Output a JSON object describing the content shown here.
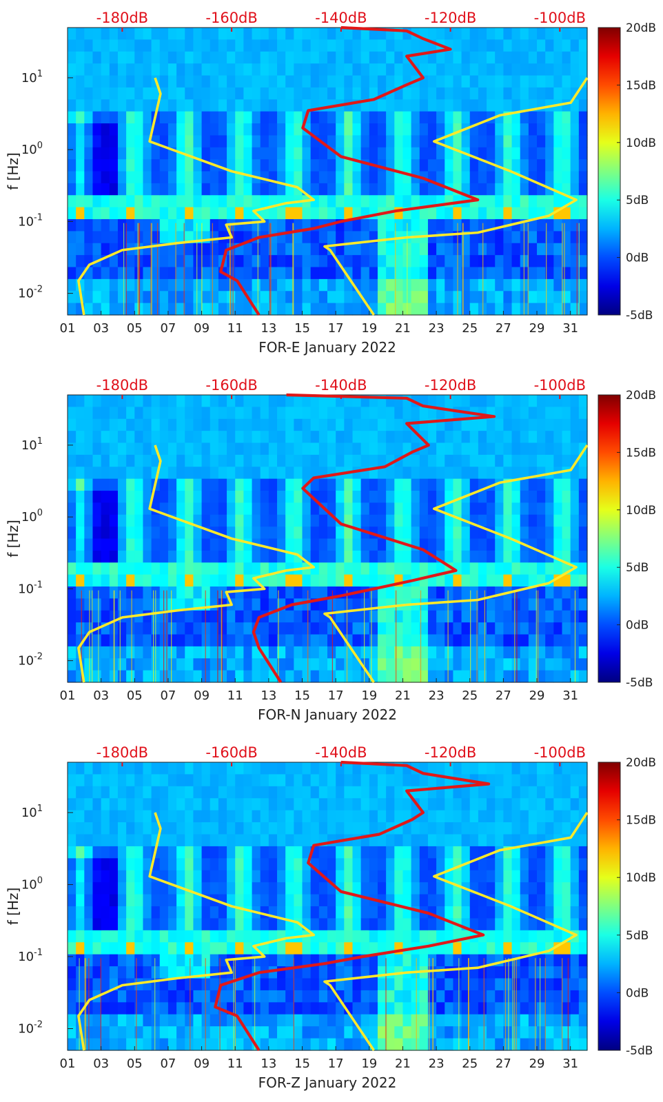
{
  "figure": {
    "colors": {
      "ppsd_low": "#00007f",
      "noise_model": "#ffea2a",
      "spectrum_line": "#e01818",
      "top_axis_text": "#e0101a",
      "axis_text": "#222222"
    }
  },
  "chart_data": [
    {
      "type": "heatmap",
      "title": "",
      "xlabel": "FOR-E January 2022",
      "ylabel": "f [Hz]",
      "x_ticks": [
        "01",
        "03",
        "05",
        "07",
        "09",
        "11",
        "13",
        "15",
        "17",
        "19",
        "21",
        "23",
        "25",
        "27",
        "29",
        "31"
      ],
      "x_range_days": [
        1,
        32
      ],
      "y_ticks": [
        "10^-2",
        "10^-1",
        "10^0",
        "10^1"
      ],
      "y_range_hz": [
        0.005,
        50
      ],
      "top_axis_ticks": [
        "-180dB",
        "-160dB",
        "-140dB",
        "-120dB",
        "-100dB"
      ],
      "top_axis_range_db": [
        -190,
        -95
      ],
      "colorbar_ticks": [
        "20dB",
        "15dB",
        "10dB",
        "5dB",
        "0dB",
        "-5dB"
      ],
      "colorbar_range_db": [
        -5,
        20
      ],
      "series": [
        {
          "name": "noise model (left)",
          "axis": "top",
          "points": [
            [
              -187,
              0.005
            ],
            [
              -188,
              0.015
            ],
            [
              -186,
              0.025
            ],
            [
              -180,
              0.04
            ],
            [
              -170,
              0.05
            ],
            [
              -160,
              0.06
            ],
            [
              -161,
              0.09
            ],
            [
              -154,
              0.1
            ],
            [
              -156,
              0.14
            ],
            [
              -150,
              0.18
            ],
            [
              -145,
              0.2
            ],
            [
              -148,
              0.3
            ],
            [
              -160,
              0.5
            ],
            [
              -175,
              1.3
            ],
            [
              -173,
              6
            ],
            [
              -174,
              10
            ]
          ]
        },
        {
          "name": "noise model (right)",
          "axis": "top",
          "points": [
            [
              -134,
              0.005
            ],
            [
              -142,
              0.04
            ],
            [
              -143,
              0.045
            ],
            [
              -128,
              0.06
            ],
            [
              -115,
              0.07
            ],
            [
              -102,
              0.12
            ],
            [
              -97,
              0.2
            ],
            [
              -109,
              0.5
            ],
            [
              -123,
              1.3
            ],
            [
              -111,
              3
            ],
            [
              -98,
              4.5
            ],
            [
              -95,
              10
            ]
          ]
        },
        {
          "name": "station spectrum",
          "axis": "top",
          "points": [
            [
              -155,
              0.005
            ],
            [
              -159,
              0.015
            ],
            [
              -162,
              0.02
            ],
            [
              -161,
              0.04
            ],
            [
              -155,
              0.06
            ],
            [
              -145,
              0.08
            ],
            [
              -140,
              0.1
            ],
            [
              -130,
              0.14
            ],
            [
              -115,
              0.2
            ],
            [
              -125,
              0.4
            ],
            [
              -140,
              0.8
            ],
            [
              -147,
              2
            ],
            [
              -146,
              3.5
            ],
            [
              -134,
              5
            ],
            [
              -128,
              8
            ],
            [
              -125,
              10
            ],
            [
              -128,
              20
            ],
            [
              -120,
              25
            ],
            [
              -125,
              35
            ],
            [
              -128,
              45
            ],
            [
              -140,
              50
            ]
          ]
        }
      ]
    },
    {
      "type": "heatmap",
      "title": "",
      "xlabel": "FOR-N January 2022",
      "ylabel": "f [Hz]",
      "x_ticks": [
        "01",
        "03",
        "05",
        "07",
        "09",
        "11",
        "13",
        "15",
        "17",
        "19",
        "21",
        "23",
        "25",
        "27",
        "29",
        "31"
      ],
      "x_range_days": [
        1,
        32
      ],
      "y_ticks": [
        "10^-2",
        "10^-1",
        "10^0",
        "10^1"
      ],
      "y_range_hz": [
        0.005,
        50
      ],
      "top_axis_ticks": [
        "-180dB",
        "-160dB",
        "-140dB",
        "-120dB",
        "-100dB"
      ],
      "top_axis_range_db": [
        -190,
        -95
      ],
      "colorbar_ticks": [
        "20dB",
        "15dB",
        "10dB",
        "5dB",
        "0dB",
        "-5dB"
      ],
      "colorbar_range_db": [
        -5,
        20
      ],
      "series": [
        {
          "name": "noise model (left)",
          "axis": "top",
          "points": [
            [
              -187,
              0.005
            ],
            [
              -188,
              0.015
            ],
            [
              -186,
              0.025
            ],
            [
              -180,
              0.04
            ],
            [
              -170,
              0.05
            ],
            [
              -160,
              0.06
            ],
            [
              -161,
              0.09
            ],
            [
              -154,
              0.1
            ],
            [
              -156,
              0.14
            ],
            [
              -150,
              0.18
            ],
            [
              -145,
              0.2
            ],
            [
              -148,
              0.3
            ],
            [
              -160,
              0.5
            ],
            [
              -175,
              1.3
            ],
            [
              -173,
              6
            ],
            [
              -174,
              10
            ]
          ]
        },
        {
          "name": "noise model (right)",
          "axis": "top",
          "points": [
            [
              -134,
              0.005
            ],
            [
              -142,
              0.04
            ],
            [
              -143,
              0.045
            ],
            [
              -128,
              0.06
            ],
            [
              -115,
              0.07
            ],
            [
              -102,
              0.12
            ],
            [
              -97,
              0.2
            ],
            [
              -109,
              0.5
            ],
            [
              -123,
              1.3
            ],
            [
              -111,
              3
            ],
            [
              -98,
              4.5
            ],
            [
              -95,
              10
            ]
          ]
        },
        {
          "name": "station spectrum",
          "axis": "top",
          "points": [
            [
              -151,
              0.005
            ],
            [
              -155,
              0.015
            ],
            [
              -156,
              0.025
            ],
            [
              -155,
              0.04
            ],
            [
              -149,
              0.06
            ],
            [
              -140,
              0.08
            ],
            [
              -134,
              0.1
            ],
            [
              -127,
              0.13
            ],
            [
              -119,
              0.18
            ],
            [
              -125,
              0.35
            ],
            [
              -140,
              0.8
            ],
            [
              -147,
              2.5
            ],
            [
              -145,
              3.5
            ],
            [
              -132,
              5
            ],
            [
              -127,
              8
            ],
            [
              -124,
              10
            ],
            [
              -128,
              20
            ],
            [
              -112,
              25
            ],
            [
              -125,
              35
            ],
            [
              -128,
              45
            ],
            [
              -150,
              50
            ]
          ]
        }
      ]
    },
    {
      "type": "heatmap",
      "title": "",
      "xlabel": "FOR-Z January 2022",
      "ylabel": "f [Hz]",
      "x_ticks": [
        "01",
        "03",
        "05",
        "07",
        "09",
        "11",
        "13",
        "15",
        "17",
        "19",
        "21",
        "23",
        "25",
        "27",
        "29",
        "31"
      ],
      "x_range_days": [
        1,
        32
      ],
      "y_ticks": [
        "10^-2",
        "10^-1",
        "10^0",
        "10^1"
      ],
      "y_range_hz": [
        0.005,
        50
      ],
      "top_axis_ticks": [
        "-180dB",
        "-160dB",
        "-140dB",
        "-120dB",
        "-100dB"
      ],
      "top_axis_range_db": [
        -190,
        -95
      ],
      "colorbar_ticks": [
        "20dB",
        "15dB",
        "10dB",
        "5dB",
        "0dB",
        "-5dB"
      ],
      "colorbar_range_db": [
        -5,
        20
      ],
      "series": [
        {
          "name": "noise model (left)",
          "axis": "top",
          "points": [
            [
              -187,
              0.005
            ],
            [
              -188,
              0.015
            ],
            [
              -186,
              0.025
            ],
            [
              -180,
              0.04
            ],
            [
              -170,
              0.05
            ],
            [
              -160,
              0.06
            ],
            [
              -161,
              0.09
            ],
            [
              -154,
              0.1
            ],
            [
              -156,
              0.14
            ],
            [
              -150,
              0.18
            ],
            [
              -145,
              0.2
            ],
            [
              -148,
              0.3
            ],
            [
              -160,
              0.5
            ],
            [
              -175,
              1.3
            ],
            [
              -173,
              6
            ],
            [
              -174,
              10
            ]
          ]
        },
        {
          "name": "noise model (right)",
          "axis": "top",
          "points": [
            [
              -134,
              0.005
            ],
            [
              -142,
              0.04
            ],
            [
              -143,
              0.045
            ],
            [
              -128,
              0.06
            ],
            [
              -115,
              0.07
            ],
            [
              -102,
              0.12
            ],
            [
              -97,
              0.2
            ],
            [
              -109,
              0.5
            ],
            [
              -123,
              1.3
            ],
            [
              -111,
              3
            ],
            [
              -98,
              4.5
            ],
            [
              -95,
              10
            ]
          ]
        },
        {
          "name": "station spectrum",
          "axis": "top",
          "points": [
            [
              -155,
              0.005
            ],
            [
              -159,
              0.015
            ],
            [
              -163,
              0.02
            ],
            [
              -162,
              0.04
            ],
            [
              -155,
              0.06
            ],
            [
              -143,
              0.08
            ],
            [
              -136,
              0.1
            ],
            [
              -124,
              0.14
            ],
            [
              -114,
              0.2
            ],
            [
              -124,
              0.4
            ],
            [
              -140,
              0.8
            ],
            [
              -146,
              2
            ],
            [
              -145,
              3.5
            ],
            [
              -133,
              5
            ],
            [
              -127,
              8
            ],
            [
              -125,
              10
            ],
            [
              -128,
              20
            ],
            [
              -113,
              25
            ],
            [
              -125,
              35
            ],
            [
              -128,
              45
            ],
            [
              -140,
              50
            ]
          ]
        }
      ]
    }
  ]
}
